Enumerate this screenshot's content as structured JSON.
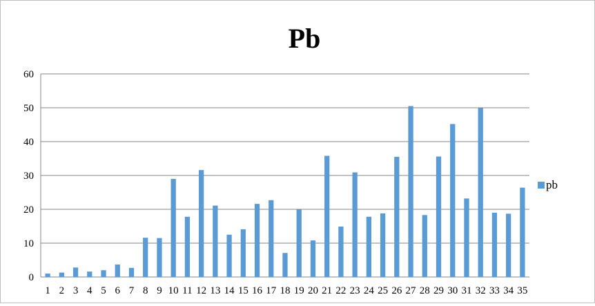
{
  "chart_data": {
    "type": "bar",
    "title": "Pb",
    "xlabel": "",
    "ylabel": "",
    "ylim": [
      0,
      60
    ],
    "yticks": [
      0,
      10,
      20,
      30,
      40,
      50,
      60
    ],
    "grid": true,
    "legend_position": "right",
    "categories": [
      "1",
      "2",
      "3",
      "4",
      "5",
      "6",
      "7",
      "8",
      "9",
      "10",
      "11",
      "12",
      "13",
      "14",
      "15",
      "16",
      "17",
      "18",
      "19",
      "20",
      "21",
      "22",
      "23",
      "24",
      "25",
      "26",
      "27",
      "28",
      "29",
      "30",
      "31",
      "32",
      "33",
      "34",
      "35"
    ],
    "series": [
      {
        "name": "pb",
        "color": "#5b9bd5",
        "values": [
          1.0,
          1.3,
          2.8,
          1.6,
          2.0,
          3.7,
          2.7,
          11.6,
          11.5,
          29.0,
          17.8,
          31.6,
          21.1,
          12.5,
          14.1,
          21.6,
          22.7,
          7.1,
          19.9,
          10.8,
          35.8,
          14.9,
          30.9,
          17.8,
          18.8,
          35.5,
          50.5,
          18.3,
          35.6,
          45.2,
          23.2,
          49.9,
          19.0,
          18.7,
          26.4
        ]
      }
    ]
  }
}
